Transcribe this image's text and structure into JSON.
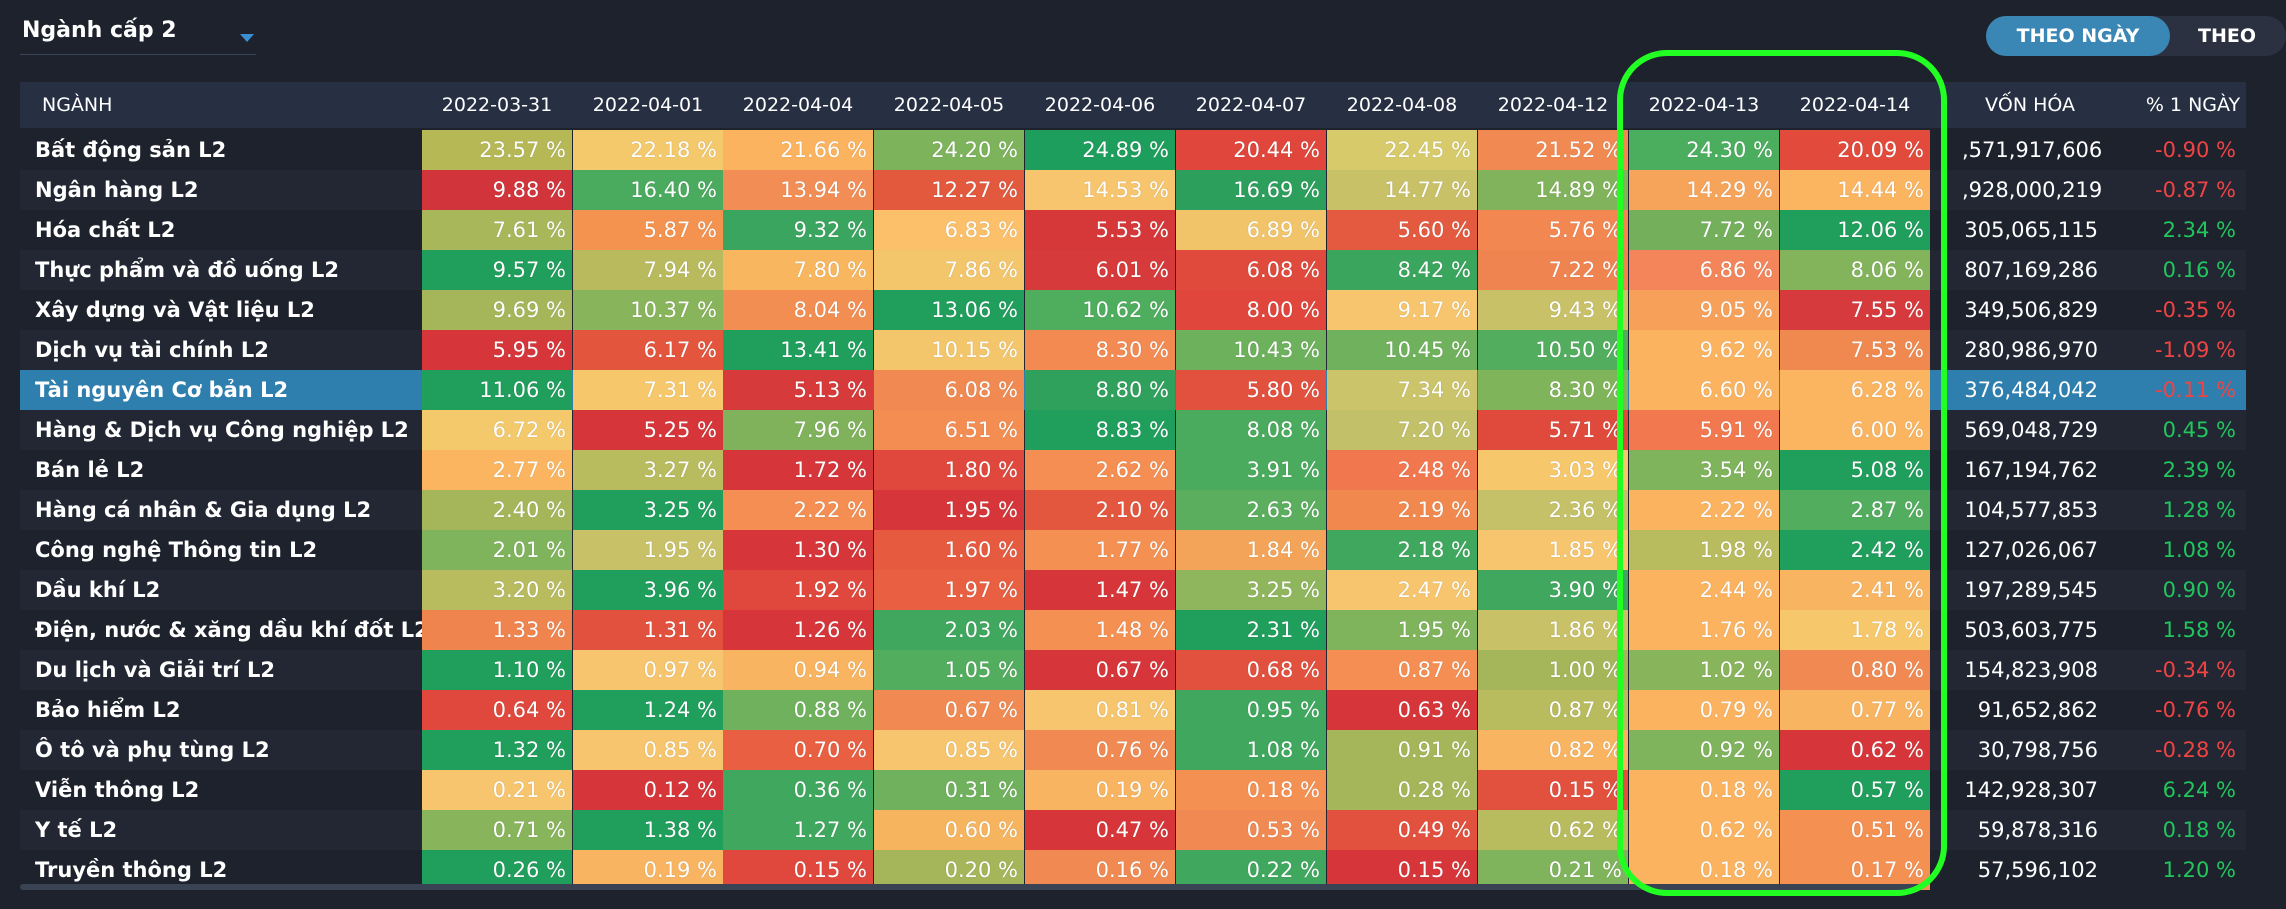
{
  "selector": {
    "label": "Ngành cấp 2"
  },
  "toggle": {
    "active": "THEO NGÀY",
    "inactive": "THEO"
  },
  "headers": {
    "nganh": "NGÀNH",
    "dates": [
      "2022-03-31",
      "2022-04-01",
      "2022-04-04",
      "2022-04-05",
      "2022-04-06",
      "2022-04-07",
      "2022-04-08",
      "2022-04-12",
      "2022-04-13",
      "2022-04-14"
    ],
    "cap": "VỐN HÓA",
    "change": "% 1 NGÀY"
  },
  "rows": [
    {
      "name": "Bất động sản L2",
      "v": [
        "23.57 %",
        "22.18 %",
        "21.66 %",
        "24.20 %",
        "24.89 %",
        "20.44 %",
        "22.45 %",
        "21.52 %",
        "24.30 %",
        "20.09 %"
      ],
      "c": [
        "#b5b855",
        "#f4c96b",
        "#fbb35f",
        "#7cb35b",
        "#1e9e5c",
        "#e0463b",
        "#d7ca6a",
        "#f08a52",
        "#4bae5e",
        "#e24a3c"
      ],
      "cap": ",571,917,606",
      "chg": "-0.90 %",
      "up": false
    },
    {
      "name": "Ngân hàng L2",
      "v": [
        "9.88 %",
        "16.40 %",
        "13.94 %",
        "12.27 %",
        "14.53 %",
        "16.69 %",
        "14.77 %",
        "14.89 %",
        "14.29 %",
        "14.44 %"
      ],
      "c": [
        "#d2343b",
        "#4aab5e",
        "#f28e55",
        "#e2593e",
        "#f6c56d",
        "#2d9f5c",
        "#c8c168",
        "#80b35b",
        "#f6a45a",
        "#fbb45f"
      ],
      "cap": ",928,000,219",
      "chg": "-0.87 %",
      "up": false
    },
    {
      "name": "Hóa chất L2",
      "v": [
        "7.61 %",
        "5.87 %",
        "9.32 %",
        "6.83 %",
        "5.53 %",
        "6.89 %",
        "5.60 %",
        "5.76 %",
        "7.72 %",
        "12.06 %"
      ],
      "c": [
        "#a8b75a",
        "#f4924f",
        "#3aa55f",
        "#fcc06a",
        "#d6383a",
        "#f2c46a",
        "#e35a40",
        "#f28752",
        "#74b05c",
        "#1f9e5c"
      ],
      "cap": "305,065,115",
      "chg": "2.34 %",
      "up": true
    },
    {
      "name": "Thực phẩm và đồ uống L2",
      "v": [
        "9.57 %",
        "7.94 %",
        "7.80 %",
        "7.86 %",
        "6.01 %",
        "6.08 %",
        "8.42 %",
        "7.22 %",
        "6.86 %",
        "8.06 %"
      ],
      "c": [
        "#1f9e5c",
        "#b9ba5d",
        "#f8b65f",
        "#f4c66b",
        "#d63a3a",
        "#e04a3c",
        "#3aa55d",
        "#f08451",
        "#f4855a",
        "#83b45b"
      ],
      "cap": "807,169,286",
      "chg": "0.16 %",
      "up": true
    },
    {
      "name": "Xây dựng và Vật liệu L2",
      "v": [
        "9.69 %",
        "10.37 %",
        "8.04 %",
        "13.06 %",
        "10.62 %",
        "8.00 %",
        "9.17 %",
        "9.43 %",
        "9.05 %",
        "7.55 %"
      ],
      "c": [
        "#a5b65a",
        "#88b45b",
        "#f28e52",
        "#1f9e5c",
        "#4fad5e",
        "#e0463c",
        "#f6c56d",
        "#c8c168",
        "#f7a05a",
        "#d63a3c"
      ],
      "cap": "349,506,829",
      "chg": "-0.35 %",
      "up": false
    },
    {
      "name": "Dịch vụ tài chính L2",
      "v": [
        "5.95 %",
        "6.17 %",
        "13.41 %",
        "10.15 %",
        "8.30 %",
        "10.43 %",
        "10.45 %",
        "10.50 %",
        "9.62 %",
        "7.53 %"
      ],
      "c": [
        "#d6363a",
        "#e4553e",
        "#1f9e5c",
        "#f4c66b",
        "#f28a52",
        "#6db15c",
        "#6fb15c",
        "#52ad5e",
        "#fbb360",
        "#f0894f"
      ],
      "cap": "280,986,970",
      "chg": "-1.09 %",
      "up": false
    },
    {
      "name": "Tài nguyên Cơ bản L2",
      "v": [
        "11.06 %",
        "7.31 %",
        "5.13 %",
        "6.08 %",
        "8.80 %",
        "5.80 %",
        "7.34 %",
        "8.30 %",
        "6.60 %",
        "6.28 %"
      ],
      "c": [
        "#1f9e5c",
        "#f7c86b",
        "#d63a3a",
        "#f18a52",
        "#2fa15d",
        "#e2503e",
        "#cbc46a",
        "#80b45b",
        "#fbb360",
        "#fbb560"
      ],
      "cap": "376,484,042",
      "chg": "-0.11 %",
      "up": false,
      "sel": true
    },
    {
      "name": "Hàng & Dịch vụ Công nghiệp L2",
      "v": [
        "6.72 %",
        "5.25 %",
        "7.96 %",
        "6.51 %",
        "8.83 %",
        "8.08 %",
        "7.20 %",
        "5.71 %",
        "5.91 %",
        "6.00 %"
      ],
      "c": [
        "#f4c96b",
        "#d6363a",
        "#7fb25b",
        "#f48d52",
        "#1f9e5c",
        "#4aab5e",
        "#c2c068",
        "#e04a3c",
        "#f2784f",
        "#fbb560"
      ],
      "cap": "569,048,729",
      "chg": "0.45 %",
      "up": true
    },
    {
      "name": "Bán lẻ L2",
      "v": [
        "2.77 %",
        "3.27 %",
        "1.72 %",
        "1.80 %",
        "2.62 %",
        "3.91 %",
        "2.48 %",
        "3.03 %",
        "3.54 %",
        "5.08 %"
      ],
      "c": [
        "#fbb560",
        "#b8bb5e",
        "#d6363a",
        "#e0483d",
        "#f48e52",
        "#4aab5e",
        "#f1774f",
        "#f6c86b",
        "#7fb45c",
        "#1f9e5c"
      ],
      "cap": "167,194,762",
      "chg": "2.39 %",
      "up": true
    },
    {
      "name": "Hàng cá nhân & Gia dụng L2",
      "v": [
        "2.40 %",
        "3.25 %",
        "2.22 %",
        "1.95 %",
        "2.10 %",
        "2.63 %",
        "2.19 %",
        "2.36 %",
        "2.22 %",
        "2.87 %"
      ],
      "c": [
        "#a4b659",
        "#1f9e5c",
        "#f48e52",
        "#d6363a",
        "#e4573f",
        "#5aae5d",
        "#f1894f",
        "#c5c168",
        "#fbb360",
        "#52ad5e"
      ],
      "cap": "104,577,853",
      "chg": "1.28 %",
      "up": true
    },
    {
      "name": "Công nghệ Thông tin L2",
      "v": [
        "2.01 %",
        "1.95 %",
        "1.30 %",
        "1.60 %",
        "1.77 %",
        "1.84 %",
        "2.18 %",
        "1.85 %",
        "1.98 %",
        "2.42 %"
      ],
      "c": [
        "#7fb45c",
        "#c8c168",
        "#d6363a",
        "#e65a40",
        "#f49052",
        "#f4a458",
        "#3fa85e",
        "#f6c56d",
        "#b8bb5e",
        "#1f9e5c"
      ],
      "cap": "127,026,067",
      "chg": "1.08 %",
      "up": true
    },
    {
      "name": "Dầu khí L2",
      "v": [
        "3.20 %",
        "3.96 %",
        "1.92 %",
        "1.97 %",
        "1.47 %",
        "3.25 %",
        "2.47 %",
        "3.90 %",
        "2.44 %",
        "2.41 %"
      ],
      "c": [
        "#b8bb5e",
        "#1f9e5c",
        "#e0483d",
        "#e85f41",
        "#d6363a",
        "#8fb65c",
        "#f6c56d",
        "#3fa85e",
        "#fbb360",
        "#f8b460"
      ],
      "cap": "197,289,545",
      "chg": "0.90 %",
      "up": true
    },
    {
      "name": "Điện, nước & xăng dầu khí đốt L2",
      "v": [
        "1.33 %",
        "1.31 %",
        "1.26 %",
        "2.03 %",
        "1.48 %",
        "2.31 %",
        "1.95 %",
        "1.86 %",
        "1.76 %",
        "1.78 %"
      ],
      "c": [
        "#f0844f",
        "#e2513e",
        "#d6363a",
        "#3fa85e",
        "#f49052",
        "#1f9e5c",
        "#7fb45c",
        "#c8c168",
        "#fbb360",
        "#f7c86b"
      ],
      "cap": "503,603,775",
      "chg": "1.58 %",
      "up": true
    },
    {
      "name": "Du lịch và Giải trí L2",
      "v": [
        "1.10 %",
        "0.97 %",
        "0.94 %",
        "1.05 %",
        "0.67 %",
        "0.68 %",
        "0.87 %",
        "1.00 %",
        "1.02 %",
        "0.80 %"
      ],
      "c": [
        "#1f9e5c",
        "#f6c56d",
        "#f8b460",
        "#52ad5e",
        "#d6363a",
        "#e2503e",
        "#f48e52",
        "#a4b659",
        "#88b45b",
        "#f08a52"
      ],
      "cap": "154,823,908",
      "chg": "-0.34 %",
      "up": false
    },
    {
      "name": "Bảo hiểm L2",
      "v": [
        "0.64 %",
        "1.24 %",
        "0.88 %",
        "0.67 %",
        "0.81 %",
        "0.95 %",
        "0.63 %",
        "0.87 %",
        "0.79 %",
        "0.77 %"
      ],
      "c": [
        "#e0483d",
        "#1f9e5c",
        "#6fb15c",
        "#f08a52",
        "#f6c56d",
        "#3fa85e",
        "#d6363a",
        "#b8bb5e",
        "#fbb360",
        "#f8b460"
      ],
      "cap": "91,652,862",
      "chg": "-0.76 %",
      "up": false
    },
    {
      "name": "Ô tô và phụ tùng L2",
      "v": [
        "1.32 %",
        "0.85 %",
        "0.70 %",
        "0.85 %",
        "0.76 %",
        "1.08 %",
        "0.91 %",
        "0.82 %",
        "0.92 %",
        "0.62 %"
      ],
      "c": [
        "#1f9e5c",
        "#f6c56d",
        "#e85f41",
        "#f6c56d",
        "#f08a52",
        "#3fa85e",
        "#a4b659",
        "#f8b460",
        "#7fb45c",
        "#d6363a"
      ],
      "cap": "30,798,756",
      "chg": "-0.28 %",
      "up": false
    },
    {
      "name": "Viễn thông L2",
      "v": [
        "0.21 %",
        "0.12 %",
        "0.36 %",
        "0.31 %",
        "0.19 %",
        "0.18 %",
        "0.28 %",
        "0.15 %",
        "0.18 %",
        "0.57 %"
      ],
      "c": [
        "#f6c56d",
        "#d6363a",
        "#3fa85e",
        "#6fb15c",
        "#f8b460",
        "#f49052",
        "#a4b659",
        "#e2503e",
        "#fbb360",
        "#1f9e5c"
      ],
      "cap": "142,928,307",
      "chg": "6.24 %",
      "up": true
    },
    {
      "name": "Y tế L2",
      "v": [
        "0.71 %",
        "1.38 %",
        "1.27 %",
        "0.60 %",
        "0.47 %",
        "0.53 %",
        "0.49 %",
        "0.62 %",
        "0.62 %",
        "0.51 %"
      ],
      "c": [
        "#88b45b",
        "#1f9e5c",
        "#3fa85e",
        "#f6b45e",
        "#d6363a",
        "#f08a52",
        "#e2503e",
        "#b8bb5e",
        "#fbb360",
        "#f49052"
      ],
      "cap": "59,878,316",
      "chg": "0.18 %",
      "up": true
    },
    {
      "name": "Truyền thông L2",
      "v": [
        "0.26 %",
        "0.19 %",
        "0.15 %",
        "0.20 %",
        "0.16 %",
        "0.22 %",
        "0.15 %",
        "0.21 %",
        "0.18 %",
        "0.17 %"
      ],
      "c": [
        "#1f9e5c",
        "#f8b460",
        "#e0483d",
        "#a4b659",
        "#f08a52",
        "#3fa85e",
        "#d6363a",
        "#7fb45c",
        "#fbb360",
        "#f49052"
      ],
      "cap": "57,596,102",
      "chg": "1.20 %",
      "up": true
    }
  ]
}
